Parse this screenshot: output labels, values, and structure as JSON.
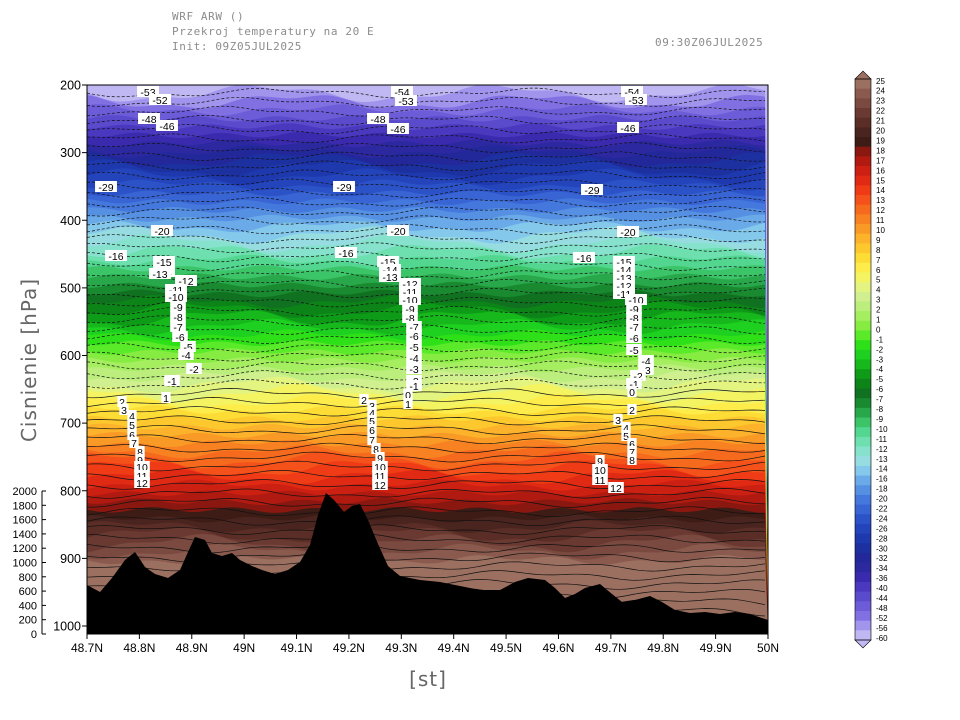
{
  "header": {
    "line1": "WRF ARW ()",
    "line2": "Przekroj temperatury na 20 E",
    "line3": "Init: 09Z05JUL2025",
    "valid": "09:30Z06JUL2025"
  },
  "chart_data": {
    "type": "heatmap",
    "title": "Przekroj temperatury na 20 E",
    "xlabel": "[st]",
    "ylabel": "Cisnienie [hPa]",
    "x_ticks": [
      "48.7N",
      "48.8N",
      "48.9N",
      "49N",
      "49.1N",
      "49.2N",
      "49.3N",
      "49.4N",
      "49.5N",
      "49.6N",
      "49.7N",
      "49.8N",
      "49.9N",
      "50N"
    ],
    "xlim": [
      48.7,
      50.0
    ],
    "y_ticks": [
      "200",
      "300",
      "400",
      "500",
      "600",
      "700",
      "800",
      "900",
      "1000"
    ],
    "ylim": [
      1000,
      200
    ],
    "height_ticks": [
      "2000",
      "1800",
      "1600",
      "1400",
      "1200",
      "1000",
      "800",
      "600",
      "400",
      "200",
      "0"
    ],
    "colorbar_levels": [
      "25",
      "24",
      "23",
      "22",
      "21",
      "20",
      "19",
      "18",
      "17",
      "16",
      "15",
      "14",
      "13",
      "12",
      "11",
      "10",
      "9",
      "8",
      "7",
      "6",
      "5",
      "4",
      "3",
      "2",
      "1",
      "0",
      "-1",
      "-2",
      "-3",
      "-4",
      "-5",
      "-6",
      "-7",
      "-8",
      "-9",
      "-10",
      "-11",
      "-12",
      "-13",
      "-14",
      "-16",
      "-18",
      "-20",
      "-22",
      "-24",
      "-26",
      "-28",
      "-30",
      "-32",
      "-34",
      "-36",
      "-40",
      "-44",
      "-48",
      "-52",
      "-56",
      "-60"
    ],
    "colors": [
      "#9c7060",
      "#8a5a4e",
      "#7a4a40",
      "#6a3a32",
      "#5a2e26",
      "#4a241e",
      "#3e1c16",
      "#8a1810",
      "#b01a10",
      "#cc2012",
      "#e02a14",
      "#f03c16",
      "#f4521a",
      "#f66a1e",
      "#f88222",
      "#fa9a26",
      "#fcb22a",
      "#fdc82e",
      "#fedc36",
      "#fdec4a",
      "#f4f462",
      "#e4f480",
      "#d0f090",
      "#bcee7e",
      "#a4ee60",
      "#86ec42",
      "#5aea2a",
      "#2ee018",
      "#1ed020",
      "#16b81c",
      "#0e9c18",
      "#0c8418",
      "#107220",
      "#1a8a30",
      "#28a84a",
      "#3cc468",
      "#52d690",
      "#6ee0b0",
      "#86e2cc",
      "#96dce0",
      "#84c8ec",
      "#6aaae8",
      "#5690e2",
      "#4478dc",
      "#3864d4",
      "#2c52c8",
      "#2444bc",
      "#1e38ae",
      "#1c30a0",
      "#22289a",
      "#2c28a0",
      "#3a2aae",
      "#4a38be",
      "#5a4acc",
      "#6c5cd8",
      "#8070e2",
      "#a094ec",
      "#c0b8f2"
    ],
    "contour_labels": [
      "-53",
      "-52",
      "-54",
      "-48",
      "-46",
      "-29",
      "-20",
      "-16",
      "-15",
      "-14",
      "-13",
      "-12",
      "-11",
      "-10",
      "-9",
      "-8",
      "-7",
      "-6",
      "-5",
      "-4",
      "-3",
      "-2",
      "-1",
      "0",
      "1",
      "2",
      "3",
      "4",
      "5",
      "6",
      "7",
      "8",
      "9",
      "10",
      "11",
      "12"
    ],
    "terrain_label": "terrain"
  }
}
